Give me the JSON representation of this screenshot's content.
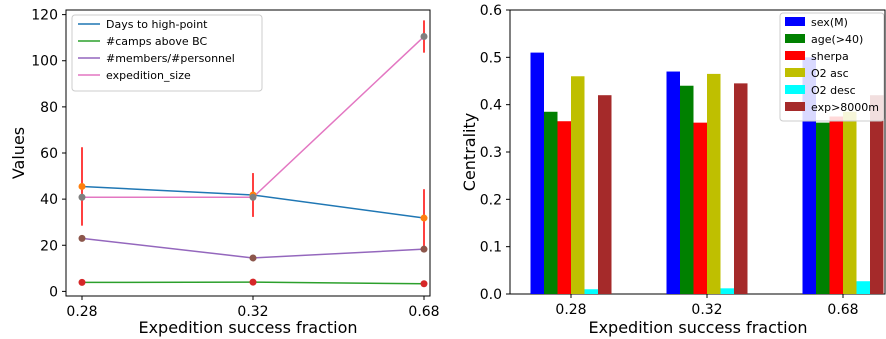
{
  "chart_data": [
    {
      "type": "line",
      "xlabel": "Expedition success fraction",
      "ylabel": "Values",
      "categories": [
        "0.28",
        "0.32",
        "0.68"
      ],
      "ylim": [
        -2,
        122
      ],
      "yticks": [
        0,
        20,
        40,
        60,
        80,
        100,
        120
      ],
      "legend_position": "top-left",
      "grid": false,
      "series": [
        {
          "name": "Days to high-point",
          "color": "#1f77b4",
          "marker_color": "#ff7f0e",
          "values": [
            45.5,
            41.8,
            31.8
          ],
          "error": [
            17.0,
            9.5,
            12.5
          ]
        },
        {
          "name": "#camps above BC",
          "color": "#2ca02c",
          "marker_color": "#d62728",
          "values": [
            3.9,
            4.0,
            3.3
          ],
          "error": [
            0,
            0,
            0
          ]
        },
        {
          "name": "#members/#personnel",
          "color": "#9467bd",
          "marker_color": "#8c564b",
          "values": [
            23.0,
            14.5,
            18.3
          ],
          "error": [
            0,
            0,
            0
          ]
        },
        {
          "name": "expedition_size",
          "color": "#e377c2",
          "marker_color": "#7f7f7f",
          "values": [
            40.8,
            40.8,
            110.5
          ],
          "error": [
            0,
            0,
            7.0
          ]
        }
      ]
    },
    {
      "type": "bar",
      "xlabel": "Expedition success fraction",
      "ylabel": "Centrality",
      "categories": [
        "0.28",
        "0.32",
        "0.68"
      ],
      "ylim": [
        0,
        0.6
      ],
      "yticks": [
        "0.0",
        "0.1",
        "0.2",
        "0.3",
        "0.4",
        "0.5",
        "0.6"
      ],
      "legend_position": "top-right",
      "grid": false,
      "series": [
        {
          "name": "sex(M)",
          "color": "#0000ff",
          "values": [
            0.51,
            0.47,
            0.5
          ]
        },
        {
          "name": "age(>40)",
          "color": "#008000",
          "values": [
            0.385,
            0.44,
            0.362
          ]
        },
        {
          "name": "sherpa",
          "color": "#ff0000",
          "values": [
            0.365,
            0.362,
            0.375
          ]
        },
        {
          "name": "O2 asc",
          "color": "#bfbf00",
          "values": [
            0.46,
            0.465,
            0.385
          ]
        },
        {
          "name": "O2 desc",
          "color": "#00ffff",
          "values": [
            0.01,
            0.012,
            0.027
          ]
        },
        {
          "name": "exp>8000m",
          "color": "#a52a2a",
          "values": [
            0.42,
            0.445,
            0.42
          ]
        }
      ]
    }
  ]
}
